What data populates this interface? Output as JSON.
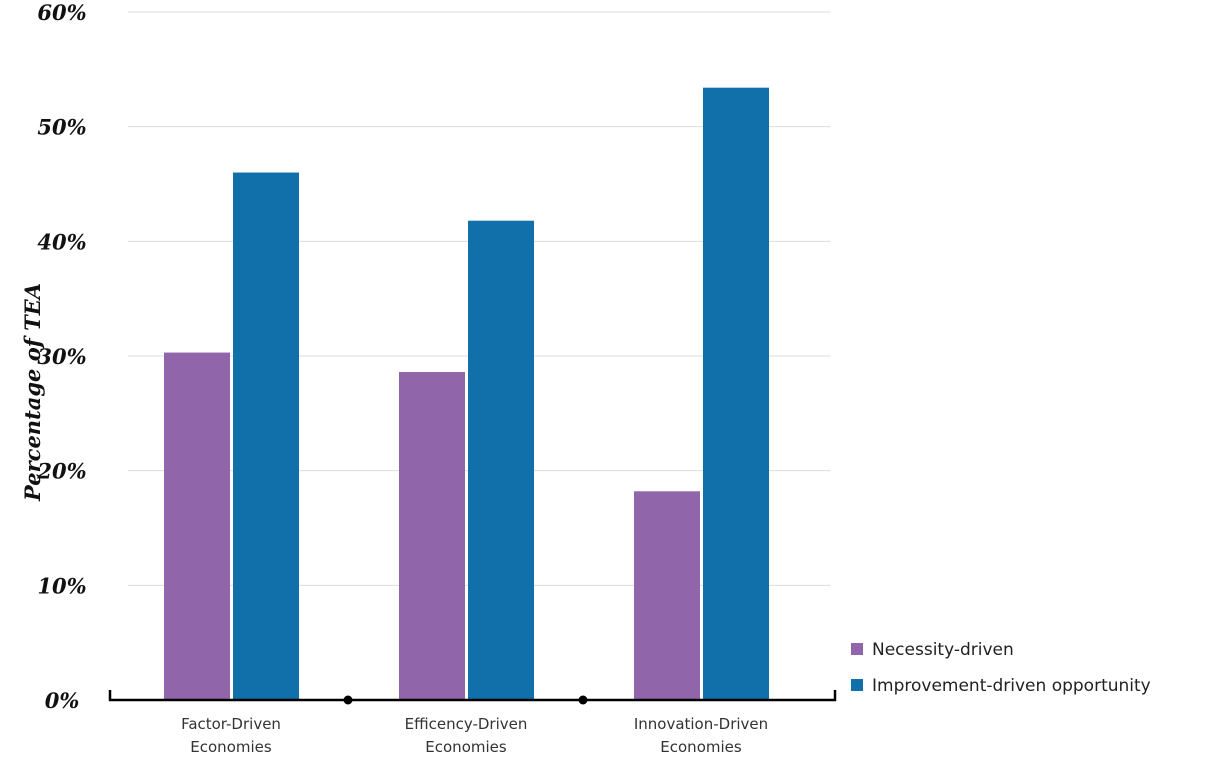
{
  "chart_data": {
    "type": "bar",
    "title": "",
    "xlabel": "",
    "ylabel": "Percentage of TEA",
    "categories": [
      [
        "Factor-Driven",
        "Economies"
      ],
      [
        "Efficency-Driven",
        "Economies"
      ],
      [
        "Innovation-Driven",
        "Economies"
      ]
    ],
    "series": [
      {
        "name": "Necessity-driven",
        "color": "#9065aa",
        "values": [
          30.3,
          28.6,
          18.2
        ]
      },
      {
        "name": "Improvement-driven opportunity",
        "color": "#1170aa",
        "values": [
          46.0,
          41.8,
          53.4
        ]
      }
    ],
    "ylim": [
      0,
      60
    ],
    "yticks": [
      0,
      10,
      20,
      30,
      40,
      50,
      60
    ],
    "ytick_labels": [
      "0%",
      "10%",
      "20%",
      "30%",
      "40%",
      "50%",
      "60%"
    ],
    "grid": true,
    "legend_position": "bottom-right"
  }
}
